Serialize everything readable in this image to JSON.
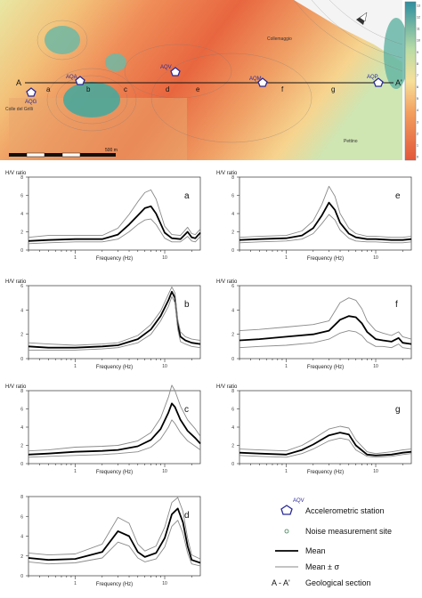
{
  "map": {
    "section_start": "A",
    "section_end": "A'",
    "segments": [
      "a",
      "b",
      "c",
      "d",
      "e",
      "f",
      "g"
    ],
    "stations": [
      {
        "code": "AQG",
        "label": "AQG"
      },
      {
        "code": "AQA",
        "label": "AQA"
      },
      {
        "code": "AQV",
        "label": "AQV"
      },
      {
        "code": "AQM",
        "label": "AQM"
      },
      {
        "code": "AQP",
        "label": "AQP"
      }
    ],
    "places": [
      "Colle del Grilli",
      "Collemaggio",
      "Pettino"
    ],
    "scale_label": "500 m",
    "colorbar_ticks": [
      "0",
      "1",
      "2",
      "3",
      "4",
      "5",
      "6",
      "7",
      "8",
      "9",
      "10",
      "11",
      "12",
      "13"
    ],
    "colors": {
      "high": "#e2573b",
      "mid": "#f3c27a",
      "low": "#3e9e90"
    }
  },
  "chart_data": {
    "type": "line",
    "panels": [
      {
        "id": "a",
        "ylabel": "H/V ratio",
        "xlabel": "Frequency (Hz)",
        "x_scale": "log",
        "xlim": [
          0.3,
          25
        ],
        "ylim": [
          0,
          8
        ],
        "x": [
          0.3,
          0.5,
          1,
          2,
          3,
          4,
          5,
          6,
          7,
          8,
          10,
          12,
          15,
          18,
          20,
          22,
          25
        ],
        "series": [
          {
            "name": "Mean",
            "values": [
              1.0,
              1.1,
              1.2,
              1.2,
              1.7,
              2.8,
              3.8,
              4.6,
              4.8,
              4.0,
              1.9,
              1.3,
              1.2,
              2.0,
              1.4,
              1.3,
              1.9
            ]
          },
          {
            "name": "Mean + σ",
            "values": [
              1.4,
              1.6,
              1.6,
              1.6,
              2.4,
              3.9,
              5.3,
              6.3,
              6.6,
              5.6,
              2.6,
              1.7,
              1.6,
              2.5,
              1.8,
              1.7,
              2.3
            ]
          },
          {
            "name": "Mean - σ",
            "values": [
              0.7,
              0.8,
              0.9,
              0.9,
              1.2,
              2.0,
              2.8,
              3.3,
              3.4,
              2.8,
              1.3,
              0.9,
              0.9,
              1.5,
              1.0,
              0.9,
              1.5
            ]
          }
        ]
      },
      {
        "id": "b",
        "ylabel": "H/V ratio",
        "xlabel": "Frequency (Hz)",
        "x_scale": "log",
        "xlim": [
          0.3,
          25
        ],
        "ylim": [
          0,
          6
        ],
        "x": [
          0.3,
          0.5,
          1,
          2,
          3,
          5,
          7,
          9,
          11,
          12,
          13,
          14,
          15,
          17,
          20,
          25
        ],
        "series": [
          {
            "name": "Mean",
            "values": [
              1.0,
              0.9,
              0.9,
              1.0,
              1.1,
              1.6,
              2.4,
              3.5,
              4.8,
              5.5,
              5.0,
              2.8,
              1.8,
              1.5,
              1.3,
              1.2
            ]
          },
          {
            "name": "Mean + σ",
            "values": [
              1.3,
              1.2,
              1.1,
              1.2,
              1.3,
              1.9,
              2.8,
              3.9,
              5.3,
              5.9,
              5.4,
              3.2,
              2.2,
              1.8,
              1.6,
              1.5
            ]
          },
          {
            "name": "Mean - σ",
            "values": [
              0.7,
              0.7,
              0.7,
              0.8,
              0.9,
              1.3,
              2.0,
              3.1,
              4.3,
              5.1,
              4.6,
              2.4,
              1.4,
              1.2,
              1.0,
              0.9
            ]
          }
        ]
      },
      {
        "id": "c",
        "ylabel": "H/V ratio",
        "xlabel": "Frequency (Hz)",
        "x_scale": "log",
        "xlim": [
          0.3,
          25
        ],
        "ylim": [
          0,
          8
        ],
        "x": [
          0.3,
          0.5,
          1,
          2,
          3,
          5,
          7,
          9,
          11,
          12,
          13,
          15,
          18,
          22,
          25
        ],
        "series": [
          {
            "name": "Mean",
            "values": [
              1.0,
              1.1,
              1.3,
              1.4,
              1.5,
              1.9,
              2.6,
              3.8,
              5.6,
              6.6,
              6.2,
              4.8,
              3.6,
              2.8,
              2.2
            ]
          },
          {
            "name": "Mean + σ",
            "values": [
              1.4,
              1.5,
              1.8,
              1.9,
              2.0,
              2.5,
              3.4,
              5.0,
              7.3,
              8.6,
              8.0,
              6.3,
              4.8,
              3.8,
              3.0
            ]
          },
          {
            "name": "Mean - σ",
            "values": [
              0.7,
              0.8,
              0.9,
              1.0,
              1.1,
              1.3,
              1.8,
              2.7,
              4.0,
              4.8,
              4.4,
              3.4,
              2.5,
              1.9,
              1.5
            ]
          }
        ]
      },
      {
        "id": "d",
        "ylabel": "",
        "xlabel": "Frequency (Hz)",
        "x_scale": "log",
        "xlim": [
          0.3,
          25
        ],
        "ylim": [
          0,
          8
        ],
        "x": [
          0.3,
          0.5,
          1,
          2,
          3,
          4,
          5,
          6,
          8,
          10,
          12,
          14,
          16,
          18,
          20,
          25
        ],
        "series": [
          {
            "name": "Mean",
            "values": [
              1.8,
              1.6,
              1.7,
              2.4,
              4.5,
              4.0,
              2.4,
              1.9,
              2.3,
              3.8,
              6.2,
              6.8,
              5.4,
              3.0,
              1.6,
              1.3
            ]
          },
          {
            "name": "Mean + σ",
            "values": [
              2.3,
              2.1,
              2.2,
              3.2,
              5.9,
              5.3,
              3.2,
              2.5,
              3.0,
              4.9,
              7.4,
              7.9,
              6.5,
              3.8,
              2.1,
              1.7
            ]
          },
          {
            "name": "Mean - σ",
            "values": [
              1.4,
              1.2,
              1.3,
              1.8,
              3.4,
              3.0,
              1.8,
              1.4,
              1.7,
              2.9,
              5.0,
              5.6,
              4.3,
              2.3,
              1.2,
              1.0
            ]
          }
        ]
      },
      {
        "id": "e",
        "ylabel": "H/V ratio",
        "xlabel": "Frequency (Hz)",
        "x_scale": "log",
        "xlim": [
          0.3,
          25
        ],
        "ylim": [
          0,
          8
        ],
        "x": [
          0.3,
          0.5,
          1,
          1.5,
          2,
          2.5,
          3,
          3.5,
          4,
          5,
          6,
          8,
          10,
          15,
          20,
          25
        ],
        "series": [
          {
            "name": "Mean",
            "values": [
              1.1,
              1.2,
              1.3,
              1.6,
              2.4,
              3.8,
              5.2,
              4.4,
              3.0,
              1.8,
              1.4,
              1.2,
              1.2,
              1.1,
              1.1,
              1.2
            ]
          },
          {
            "name": "Mean + σ",
            "values": [
              1.4,
              1.5,
              1.6,
              2.1,
              3.2,
              5.0,
              7.0,
              5.9,
              4.0,
              2.4,
              1.8,
              1.5,
              1.5,
              1.4,
              1.4,
              1.5
            ]
          },
          {
            "name": "Mean - σ",
            "values": [
              0.8,
              0.9,
              1.0,
              1.2,
              1.8,
              2.9,
              3.9,
              3.3,
              2.2,
              1.3,
              1.0,
              0.9,
              0.9,
              0.8,
              0.8,
              0.9
            ]
          }
        ]
      },
      {
        "id": "f",
        "ylabel": "H/V ratio",
        "xlabel": "Frequency (Hz)",
        "x_scale": "log",
        "xlim": [
          0.3,
          25
        ],
        "ylim": [
          0,
          6
        ],
        "x": [
          0.3,
          0.5,
          1,
          2,
          3,
          4,
          5,
          6,
          7,
          8,
          10,
          12,
          15,
          18,
          20,
          25
        ],
        "series": [
          {
            "name": "Mean",
            "values": [
              1.5,
              1.6,
              1.8,
              2.0,
              2.3,
              3.2,
              3.5,
              3.4,
              2.9,
              2.2,
              1.6,
              1.5,
              1.4,
              1.7,
              1.3,
              1.2
            ]
          },
          {
            "name": "Mean + σ",
            "values": [
              2.3,
              2.4,
              2.6,
              2.8,
              3.1,
              4.6,
              5.0,
              4.8,
              4.1,
              3.1,
              2.3,
              2.1,
              1.9,
              2.2,
              1.8,
              1.6
            ]
          },
          {
            "name": "Mean - σ",
            "values": [
              0.9,
              1.0,
              1.1,
              1.3,
              1.6,
              2.1,
              2.3,
              2.2,
              1.9,
              1.4,
              1.0,
              1.0,
              0.9,
              1.2,
              0.9,
              0.8
            ]
          }
        ]
      },
      {
        "id": "g",
        "ylabel": "H/V ratio",
        "xlabel": "Frequency (Hz)",
        "x_scale": "log",
        "xlim": [
          0.3,
          25
        ],
        "ylim": [
          0,
          8
        ],
        "x": [
          0.3,
          0.5,
          1,
          1.5,
          2,
          3,
          4,
          5,
          6,
          8,
          10,
          15,
          20,
          25
        ],
        "series": [
          {
            "name": "Mean",
            "values": [
              1.2,
              1.1,
              1.0,
              1.5,
              2.1,
              3.1,
              3.4,
              3.2,
              2.0,
              1.0,
              0.9,
              1.0,
              1.2,
              1.3
            ]
          },
          {
            "name": "Mean + σ",
            "values": [
              1.6,
              1.5,
              1.4,
              2.0,
              2.7,
              3.8,
              4.1,
              3.9,
              2.6,
              1.3,
              1.1,
              1.3,
              1.5,
              1.6
            ]
          },
          {
            "name": "Mean - σ",
            "values": [
              0.9,
              0.8,
              0.7,
              1.1,
              1.6,
              2.5,
              2.8,
              2.6,
              1.5,
              0.8,
              0.7,
              0.8,
              1.0,
              1.1
            ]
          }
        ]
      }
    ]
  },
  "legend": {
    "items": [
      {
        "key": "station",
        "label": "Accelerometric station",
        "symbol_label": "AQV"
      },
      {
        "key": "noise",
        "label": "Noise measurement site"
      },
      {
        "key": "mean",
        "label": "Mean"
      },
      {
        "key": "sigma",
        "label": "Mean ± σ"
      },
      {
        "key": "section",
        "label": "Geological section",
        "symbol_label": "A - A'"
      }
    ]
  }
}
